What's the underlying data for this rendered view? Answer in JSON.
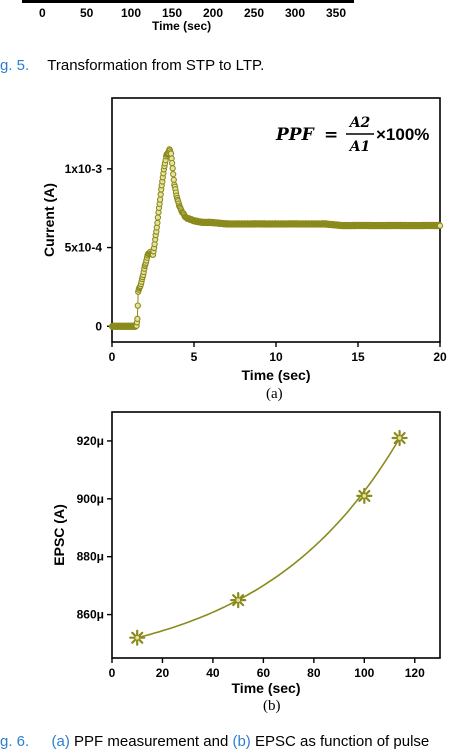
{
  "top_partial_axis": {
    "ticks": [
      "0",
      "50",
      "100",
      "150",
      "200",
      "250",
      "300",
      "350"
    ],
    "xlabel": "Time (sec)"
  },
  "figure5_caption": {
    "number": "g. 5.",
    "text": "Transformation from STP to LTP."
  },
  "colors": {
    "series": "#8b8a1c",
    "series_light": "#b9b65a",
    "marker_fill": "#e6e3a0",
    "axis": "#000000",
    "link": "#2a7fd0"
  },
  "panel_a_label": "(a)",
  "panel_b_label": "(b)",
  "chart_data": [
    {
      "type": "scatter",
      "title": "",
      "xlabel": "Time (sec)",
      "ylabel": "Current (A)",
      "xlim": [
        0,
        20
      ],
      "ylim": [
        -0.0001,
        0.00145
      ],
      "x_ticks": [
        0,
        5,
        10,
        15,
        20
      ],
      "x_tick_labels": [
        "0",
        "5",
        "10",
        "15",
        "20"
      ],
      "y_ticks": [
        0,
        0.0005,
        0.001
      ],
      "y_tick_labels": [
        "0",
        "5x10-4",
        "1x10-3"
      ],
      "annotation": "PPF = A2/A1 ×100%",
      "annotation_parts": {
        "lhs": "PPF",
        "eq": "=",
        "num": "A2",
        "den": "A1",
        "tail": "×100%"
      },
      "series": [
        {
          "x": [
            0,
            0.5,
            1.0,
            1.5,
            1.55,
            1.6,
            1.8,
            2.0,
            2.2,
            2.35,
            2.5,
            2.7,
            2.9,
            3.1,
            3.3,
            3.5,
            3.6,
            3.7,
            3.8,
            4.0,
            4.2,
            4.5,
            5.0,
            5.5,
            6,
            7,
            8,
            9,
            10,
            11,
            12,
            13,
            14,
            15,
            16,
            17,
            18,
            19,
            20
          ],
          "y": [
            0,
            0,
            0,
            0,
            5e-05,
            0.00022,
            0.00028,
            0.00038,
            0.00046,
            0.00047,
            0.00045,
            0.0006,
            0.00078,
            0.00095,
            0.00108,
            0.00112,
            0.0011,
            0.001,
            0.0009,
            0.0008,
            0.00074,
            0.00069,
            0.00067,
            0.00066,
            0.00066,
            0.00065,
            0.00065,
            0.00065,
            0.00065,
            0.00065,
            0.00065,
            0.00065,
            0.00064,
            0.00064,
            0.00064,
            0.00064,
            0.00064,
            0.00064,
            0.00064
          ]
        }
      ]
    },
    {
      "type": "line",
      "title": "",
      "xlabel": "Time (sec)",
      "ylabel": "EPSC (A)",
      "xlim": [
        0,
        130
      ],
      "ylim": [
        0.000845,
        0.00093
      ],
      "x_ticks": [
        0,
        20,
        40,
        60,
        80,
        100,
        120
      ],
      "x_tick_labels": [
        "0",
        "20",
        "40",
        "60",
        "80",
        "100",
        "120"
      ],
      "y_ticks": [
        0.00086,
        0.00088,
        0.0009,
        0.00092
      ],
      "y_tick_labels": [
        "860μ",
        "880μ",
        "900μ",
        "920μ"
      ],
      "series": [
        {
          "x": [
            10,
            50,
            100,
            114
          ],
          "y": [
            0.000852,
            0.000865,
            0.000901,
            0.000921
          ]
        }
      ]
    }
  ],
  "figure6_caption": {
    "number": "g. 6.",
    "link_a": "(a)",
    "text_1": "PPF measurement and",
    "link_b": "(b)",
    "text_2": "EPSC as function of pulse"
  }
}
